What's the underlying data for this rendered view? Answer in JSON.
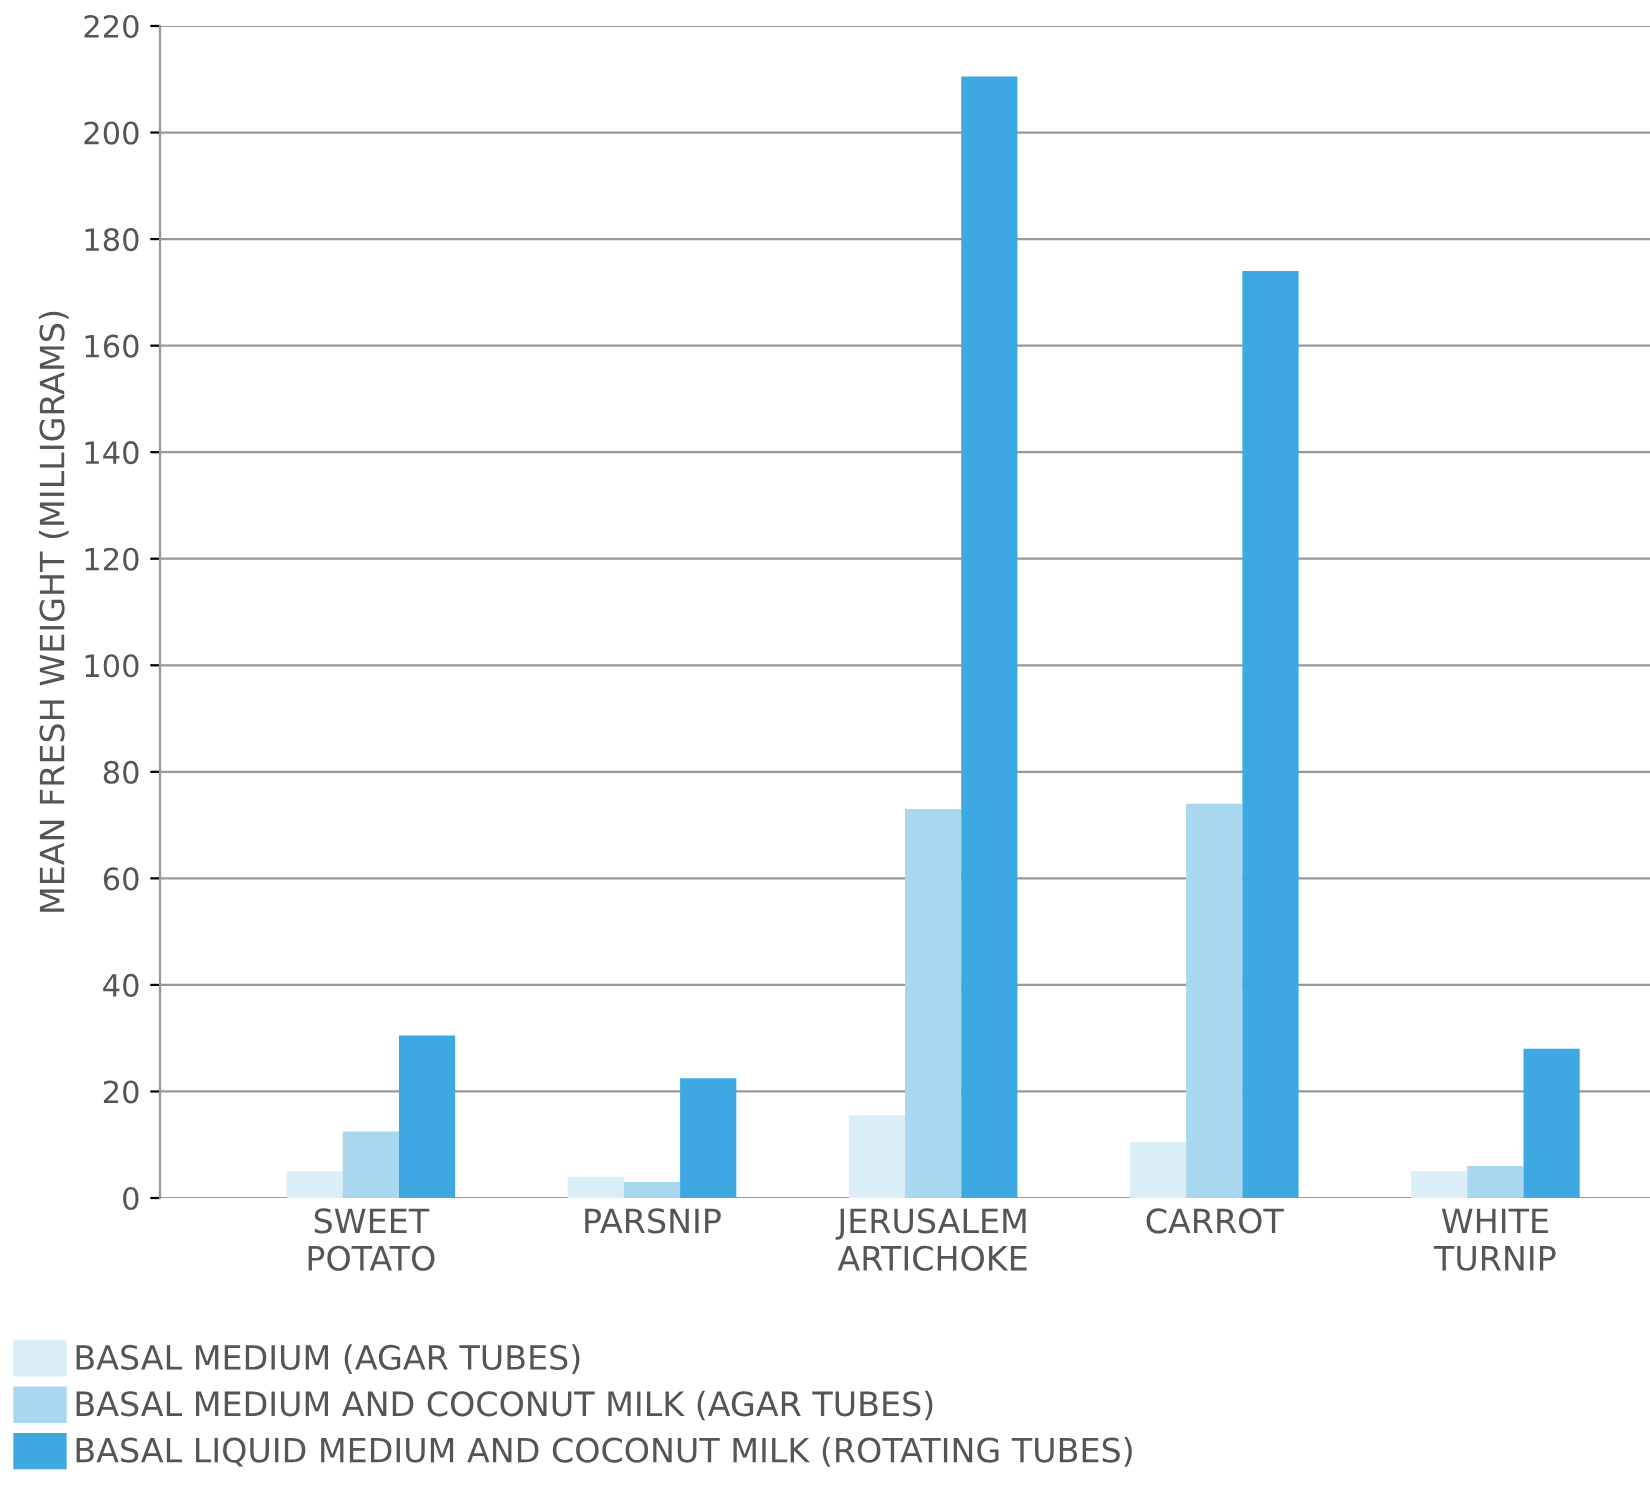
{
  "chart_data": {
    "type": "bar",
    "ylabel": "MEAN FRESH WEIGHT (MILLIGRAMS)",
    "categories": [
      "SWEET\nPOTATO",
      "PARSNIP",
      "JERUSALEM\nARTICHOKE",
      "CARROT",
      "WHITE\nTURNIP"
    ],
    "series": [
      {
        "name": "BASAL MEDIUM (AGAR TUBES)",
        "color": "#d9eef6",
        "values": [
          5,
          4,
          15.5,
          10.5,
          5
        ]
      },
      {
        "name": "BASAL MEDIUM AND COCONUT MILK (AGAR TUBES)",
        "color": "#a9d7ef",
        "values": [
          12.5,
          3,
          73,
          74,
          6
        ]
      },
      {
        "name": "BASAL LIQUID MEDIUM AND COCONUT MILK (ROTATING TUBES)",
        "color": "#3ea8e2",
        "values": [
          30.5,
          22.5,
          210.5,
          174,
          28
        ]
      }
    ],
    "ylim": [
      0,
      220
    ],
    "yticks": [
      0,
      20,
      40,
      60,
      80,
      100,
      120,
      140,
      160,
      180,
      200,
      220
    ],
    "grid": "y",
    "legend": "bottom left"
  }
}
